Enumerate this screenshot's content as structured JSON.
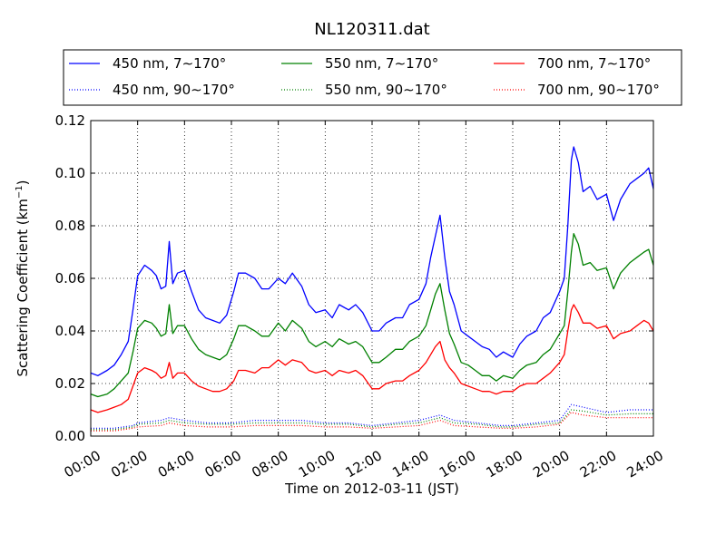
{
  "chart_data": {
    "type": "line",
    "title": "NL120311.dat",
    "xlabel": "Time on 2012-03-11 (JST)",
    "ylabel_main": "Scattering Coefficient (km",
    "ylabel_sup": "−1",
    "ylabel_end": ")",
    "xlim": [
      0,
      24
    ],
    "ylim": [
      0,
      0.12
    ],
    "grid": true,
    "legend_position": "top, above axes, 3 columns",
    "x_ticks": [
      0,
      2,
      4,
      6,
      8,
      10,
      12,
      14,
      16,
      18,
      20,
      22,
      24
    ],
    "x_tick_labels": [
      "00:00",
      "02:00",
      "04:00",
      "06:00",
      "08:00",
      "10:00",
      "12:00",
      "14:00",
      "16:00",
      "18:00",
      "20:00",
      "22:00",
      "24:00"
    ],
    "y_ticks": [
      0,
      0.02,
      0.04,
      0.06,
      0.08,
      0.1,
      0.12
    ],
    "y_tick_labels": [
      "0.00",
      "0.02",
      "0.04",
      "0.06",
      "0.08",
      "0.10",
      "0.12"
    ],
    "series": [
      {
        "name": "450 nm, 7∼170°",
        "color": "#0000ff",
        "style": "solid",
        "x": [
          0,
          0.3,
          0.7,
          1.0,
          1.3,
          1.6,
          1.8,
          2.0,
          2.3,
          2.6,
          2.8,
          3.0,
          3.2,
          3.35,
          3.5,
          3.7,
          4.0,
          4.3,
          4.6,
          4.9,
          5.2,
          5.5,
          5.8,
          6.1,
          6.3,
          6.6,
          7.0,
          7.3,
          7.6,
          8.0,
          8.3,
          8.6,
          9.0,
          9.3,
          9.6,
          10.0,
          10.3,
          10.6,
          11.0,
          11.3,
          11.6,
          12.0,
          12.3,
          12.6,
          13.0,
          13.3,
          13.6,
          14.0,
          14.3,
          14.5,
          14.7,
          14.9,
          15.1,
          15.3,
          15.5,
          15.8,
          16.1,
          16.4,
          16.7,
          17.0,
          17.3,
          17.6,
          18.0,
          18.3,
          18.6,
          19.0,
          19.3,
          19.6,
          20.0,
          20.2,
          20.35,
          20.5,
          20.6,
          20.8,
          21.0,
          21.3,
          21.6,
          22.0,
          22.3,
          22.6,
          23.0,
          23.3,
          23.6,
          23.8,
          24.0
        ],
        "y": [
          0.024,
          0.023,
          0.025,
          0.027,
          0.031,
          0.036,
          0.048,
          0.061,
          0.065,
          0.063,
          0.061,
          0.056,
          0.057,
          0.074,
          0.058,
          0.062,
          0.063,
          0.055,
          0.048,
          0.045,
          0.044,
          0.043,
          0.046,
          0.055,
          0.062,
          0.062,
          0.06,
          0.056,
          0.056,
          0.06,
          0.058,
          0.062,
          0.057,
          0.05,
          0.047,
          0.048,
          0.045,
          0.05,
          0.048,
          0.05,
          0.047,
          0.04,
          0.04,
          0.043,
          0.045,
          0.045,
          0.05,
          0.052,
          0.058,
          0.068,
          0.076,
          0.084,
          0.068,
          0.055,
          0.05,
          0.04,
          0.038,
          0.036,
          0.034,
          0.033,
          0.03,
          0.032,
          0.03,
          0.035,
          0.038,
          0.04,
          0.045,
          0.047,
          0.055,
          0.06,
          0.08,
          0.105,
          0.11,
          0.104,
          0.093,
          0.095,
          0.09,
          0.092,
          0.082,
          0.09,
          0.096,
          0.098,
          0.1,
          0.102,
          0.094
        ]
      },
      {
        "name": "550 nm, 7∼170°",
        "color": "#008000",
        "style": "solid",
        "x": [
          0,
          0.3,
          0.7,
          1.0,
          1.3,
          1.6,
          1.8,
          2.0,
          2.3,
          2.6,
          2.8,
          3.0,
          3.2,
          3.35,
          3.5,
          3.7,
          4.0,
          4.3,
          4.6,
          4.9,
          5.2,
          5.5,
          5.8,
          6.1,
          6.3,
          6.6,
          7.0,
          7.3,
          7.6,
          8.0,
          8.3,
          8.6,
          9.0,
          9.3,
          9.6,
          10.0,
          10.3,
          10.6,
          11.0,
          11.3,
          11.6,
          12.0,
          12.3,
          12.6,
          13.0,
          13.3,
          13.6,
          14.0,
          14.3,
          14.5,
          14.7,
          14.9,
          15.1,
          15.3,
          15.5,
          15.8,
          16.1,
          16.4,
          16.7,
          17.0,
          17.3,
          17.6,
          18.0,
          18.3,
          18.6,
          19.0,
          19.3,
          19.6,
          20.0,
          20.2,
          20.35,
          20.5,
          20.6,
          20.8,
          21.0,
          21.3,
          21.6,
          22.0,
          22.3,
          22.6,
          23.0,
          23.3,
          23.6,
          23.8,
          24.0
        ],
        "y": [
          0.016,
          0.015,
          0.016,
          0.018,
          0.021,
          0.024,
          0.032,
          0.041,
          0.044,
          0.043,
          0.041,
          0.038,
          0.039,
          0.05,
          0.039,
          0.042,
          0.042,
          0.037,
          0.033,
          0.031,
          0.03,
          0.029,
          0.031,
          0.037,
          0.042,
          0.042,
          0.04,
          0.038,
          0.038,
          0.043,
          0.04,
          0.044,
          0.041,
          0.036,
          0.034,
          0.036,
          0.034,
          0.037,
          0.035,
          0.036,
          0.034,
          0.028,
          0.028,
          0.03,
          0.033,
          0.033,
          0.036,
          0.038,
          0.042,
          0.048,
          0.054,
          0.058,
          0.048,
          0.039,
          0.035,
          0.028,
          0.027,
          0.025,
          0.023,
          0.023,
          0.021,
          0.023,
          0.022,
          0.025,
          0.027,
          0.028,
          0.031,
          0.033,
          0.039,
          0.042,
          0.055,
          0.07,
          0.077,
          0.073,
          0.065,
          0.066,
          0.063,
          0.064,
          0.056,
          0.062,
          0.066,
          0.068,
          0.07,
          0.071,
          0.065
        ]
      },
      {
        "name": "700 nm, 7∼170°",
        "color": "#ff0000",
        "style": "solid",
        "x": [
          0,
          0.3,
          0.7,
          1.0,
          1.3,
          1.6,
          1.8,
          2.0,
          2.3,
          2.6,
          2.8,
          3.0,
          3.2,
          3.35,
          3.5,
          3.7,
          4.0,
          4.3,
          4.6,
          4.9,
          5.2,
          5.5,
          5.8,
          6.1,
          6.3,
          6.6,
          7.0,
          7.3,
          7.6,
          8.0,
          8.3,
          8.6,
          9.0,
          9.3,
          9.6,
          10.0,
          10.3,
          10.6,
          11.0,
          11.3,
          11.6,
          12.0,
          12.3,
          12.6,
          13.0,
          13.3,
          13.6,
          14.0,
          14.3,
          14.5,
          14.7,
          14.9,
          15.1,
          15.3,
          15.5,
          15.8,
          16.1,
          16.4,
          16.7,
          17.0,
          17.3,
          17.6,
          18.0,
          18.3,
          18.6,
          19.0,
          19.3,
          19.6,
          20.0,
          20.2,
          20.35,
          20.5,
          20.6,
          20.8,
          21.0,
          21.3,
          21.6,
          22.0,
          22.3,
          22.6,
          23.0,
          23.3,
          23.6,
          23.8,
          24.0
        ],
        "y": [
          0.01,
          0.009,
          0.01,
          0.011,
          0.012,
          0.014,
          0.019,
          0.024,
          0.026,
          0.025,
          0.024,
          0.022,
          0.023,
          0.028,
          0.022,
          0.024,
          0.024,
          0.021,
          0.019,
          0.018,
          0.017,
          0.017,
          0.018,
          0.021,
          0.025,
          0.025,
          0.024,
          0.026,
          0.026,
          0.029,
          0.027,
          0.029,
          0.028,
          0.025,
          0.024,
          0.025,
          0.023,
          0.025,
          0.024,
          0.025,
          0.023,
          0.018,
          0.018,
          0.02,
          0.021,
          0.021,
          0.023,
          0.025,
          0.028,
          0.031,
          0.034,
          0.036,
          0.029,
          0.026,
          0.024,
          0.02,
          0.019,
          0.018,
          0.017,
          0.017,
          0.016,
          0.017,
          0.017,
          0.019,
          0.02,
          0.02,
          0.022,
          0.024,
          0.028,
          0.031,
          0.04,
          0.048,
          0.05,
          0.047,
          0.043,
          0.043,
          0.041,
          0.042,
          0.037,
          0.039,
          0.04,
          0.042,
          0.044,
          0.043,
          0.04
        ]
      },
      {
        "name": "450 nm, 90∼170°",
        "color": "#0000ff",
        "style": "dotted",
        "x": [
          0,
          1.0,
          1.8,
          2.0,
          3.0,
          3.35,
          4.0,
          5.0,
          6.0,
          7.0,
          8.0,
          9.0,
          10.0,
          11.0,
          12.0,
          13.0,
          14.0,
          14.9,
          15.5,
          16.5,
          17.5,
          18.0,
          19.0,
          20.0,
          20.5,
          21.0,
          22.0,
          23.0,
          24.0
        ],
        "y": [
          0.003,
          0.003,
          0.004,
          0.005,
          0.006,
          0.007,
          0.006,
          0.005,
          0.005,
          0.006,
          0.006,
          0.006,
          0.005,
          0.005,
          0.004,
          0.005,
          0.006,
          0.008,
          0.006,
          0.005,
          0.004,
          0.004,
          0.005,
          0.006,
          0.012,
          0.011,
          0.009,
          0.01,
          0.01
        ]
      },
      {
        "name": "550 nm, 90∼170°",
        "color": "#008000",
        "style": "dotted",
        "x": [
          0,
          1.0,
          1.8,
          2.0,
          3.0,
          3.35,
          4.0,
          5.0,
          6.0,
          7.0,
          8.0,
          9.0,
          10.0,
          11.0,
          12.0,
          13.0,
          14.0,
          14.9,
          15.5,
          16.5,
          17.5,
          18.0,
          19.0,
          20.0,
          20.5,
          21.0,
          22.0,
          23.0,
          24.0
        ],
        "y": [
          0.0025,
          0.0025,
          0.0035,
          0.0045,
          0.005,
          0.006,
          0.005,
          0.0045,
          0.0045,
          0.005,
          0.005,
          0.005,
          0.0045,
          0.0045,
          0.0035,
          0.0045,
          0.005,
          0.007,
          0.005,
          0.0045,
          0.0035,
          0.0035,
          0.0045,
          0.005,
          0.01,
          0.0095,
          0.008,
          0.0085,
          0.0085
        ]
      },
      {
        "name": "700 nm, 90∼170°",
        "color": "#ff0000",
        "style": "dotted",
        "x": [
          0,
          1.0,
          1.8,
          2.0,
          3.0,
          3.35,
          4.0,
          5.0,
          6.0,
          7.0,
          8.0,
          9.0,
          10.0,
          11.0,
          12.0,
          13.0,
          14.0,
          14.9,
          15.5,
          16.5,
          17.5,
          18.0,
          19.0,
          20.0,
          20.5,
          21.0,
          22.0,
          23.0,
          24.0
        ],
        "y": [
          0.002,
          0.002,
          0.003,
          0.0035,
          0.004,
          0.005,
          0.004,
          0.0035,
          0.0035,
          0.004,
          0.004,
          0.004,
          0.0035,
          0.0035,
          0.003,
          0.0035,
          0.004,
          0.006,
          0.004,
          0.0035,
          0.003,
          0.003,
          0.0035,
          0.0045,
          0.009,
          0.008,
          0.007,
          0.007,
          0.007
        ]
      }
    ]
  }
}
